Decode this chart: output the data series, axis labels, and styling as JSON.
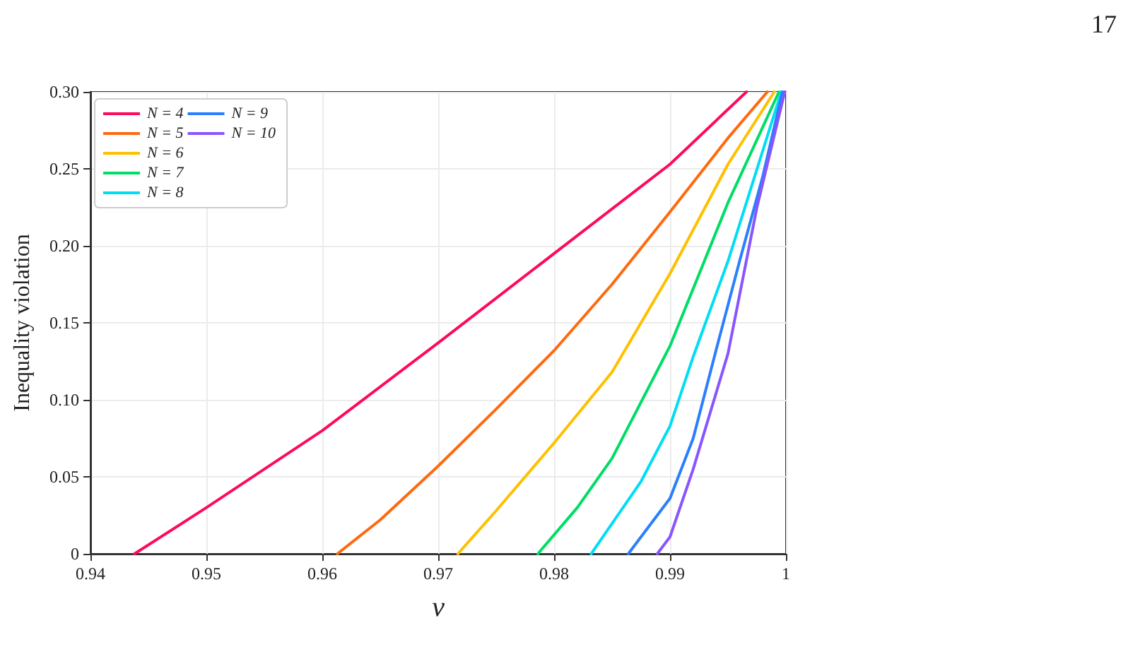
{
  "chart_data": {
    "type": "line",
    "xlabel": "v",
    "ylabel": "Inequality violation",
    "annotations": [
      "17"
    ],
    "xlim": [
      0.94,
      1
    ],
    "xticks": [
      0.94,
      0.95,
      0.96,
      0.97,
      0.98,
      0.99,
      1
    ],
    "ylim": [
      0,
      0.3
    ],
    "yticks": [
      0,
      0.05,
      {
        "value": 0.1,
        "label": "0.10"
      },
      0.15,
      {
        "value": 0.2,
        "label": "0.20"
      },
      0.25,
      {
        "value": 0.3,
        "label": "0.30"
      }
    ],
    "grid": true,
    "legend": "top left",
    "marker": "none",
    "line_style": "solid",
    "series": [
      {
        "name": "N = 4",
        "color": "#ff0a5a",
        "x": [
          0.9438,
          0.95,
          0.96,
          0.97,
          0.98,
          0.99,
          0.9966
        ],
        "values": [
          0,
          0.03,
          0.08,
          0.137,
          0.195,
          0.253,
          0.3
        ]
      },
      {
        "name": "N = 5",
        "color": "#ff6a10",
        "x": [
          0.9613,
          0.965,
          0.97,
          0.975,
          0.98,
          0.985,
          0.99,
          0.995,
          0.9984
        ],
        "values": [
          0,
          0.022,
          0.057,
          0.094,
          0.132,
          0.175,
          0.222,
          0.27,
          0.3
        ]
      },
      {
        "name": "N = 6",
        "color": "#ffc000",
        "x": [
          0.9717,
          0.975,
          0.98,
          0.985,
          0.99,
          0.995,
          0.999
        ],
        "values": [
          0,
          0.028,
          0.072,
          0.118,
          0.182,
          0.253,
          0.3
        ]
      },
      {
        "name": "N = 7",
        "color": "#00dd66",
        "x": [
          0.9786,
          0.982,
          0.985,
          0.99,
          0.995,
          0.9994
        ],
        "values": [
          0,
          0.03,
          0.062,
          0.135,
          0.228,
          0.3
        ]
      },
      {
        "name": "N = 8",
        "color": "#00ddf5",
        "x": [
          0.9832,
          0.9875,
          0.99,
          0.992,
          0.995,
          0.9996
        ],
        "values": [
          0,
          0.047,
          0.083,
          0.128,
          0.19,
          0.3
        ]
      },
      {
        "name": "N = 9",
        "color": "#2a7fff",
        "x": [
          0.9864,
          0.99,
          0.992,
          0.994,
          0.996,
          0.998,
          0.9997
        ],
        "values": [
          0,
          0.036,
          0.075,
          0.133,
          0.19,
          0.245,
          0.3
        ]
      },
      {
        "name": "N = 10",
        "color": "#8855ff",
        "x": [
          0.9889,
          0.99,
          0.992,
          0.994,
          0.995,
          0.9975,
          0.9999
        ],
        "values": [
          0,
          0.011,
          0.055,
          0.105,
          0.13,
          0.225,
          0.3
        ]
      }
    ]
  }
}
